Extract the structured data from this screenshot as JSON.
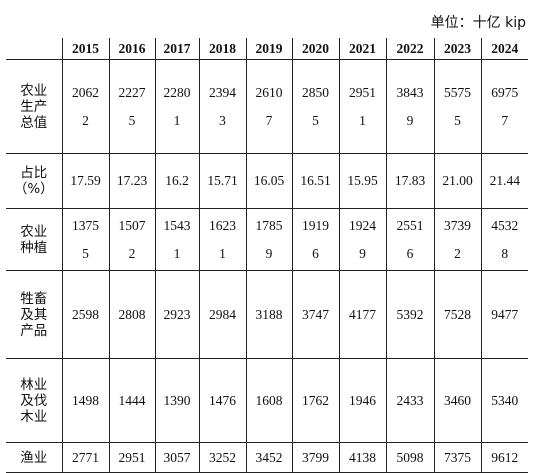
{
  "unit_label": "单位：十亿 kip",
  "years": [
    "2015",
    "2016",
    "2017",
    "2018",
    "2019",
    "2020",
    "2021",
    "2022",
    "2023",
    "2024"
  ],
  "rows": [
    {
      "label": [
        "农业",
        "生产",
        "总值"
      ],
      "values": [
        [
          "2062",
          "2"
        ],
        [
          "2227",
          "5"
        ],
        [
          "2280",
          "1"
        ],
        [
          "2394",
          "3"
        ],
        [
          "2610",
          "7"
        ],
        [
          "2850",
          "5"
        ],
        [
          "2951",
          "1"
        ],
        [
          "3843",
          "9"
        ],
        [
          "5575",
          "5"
        ],
        [
          "6975",
          "7"
        ]
      ]
    },
    {
      "label": [
        "占比",
        "（%）"
      ],
      "values": [
        "17.59",
        "17.23",
        "16.2",
        "15.71",
        "16.05",
        "16.51",
        "15.95",
        "17.83",
        "21.00",
        "21.44"
      ]
    },
    {
      "label": [
        "农业",
        "种植"
      ],
      "values": [
        [
          "1375",
          "5"
        ],
        [
          "1507",
          "2"
        ],
        [
          "1543",
          "1"
        ],
        [
          "1623",
          "1"
        ],
        [
          "1785",
          "9"
        ],
        [
          "1919",
          "6"
        ],
        [
          "1924",
          "9"
        ],
        [
          "2551",
          "6"
        ],
        [
          "3739",
          "2"
        ],
        [
          "4532",
          "8"
        ]
      ]
    },
    {
      "label": [
        "牲畜",
        "及其",
        "产品"
      ],
      "values": [
        "2598",
        "2808",
        "2923",
        "2984",
        "3188",
        "3747",
        "4177",
        "5392",
        "7528",
        "9477"
      ]
    },
    {
      "label": [
        "林业",
        "及伐",
        "木业"
      ],
      "values": [
        "1498",
        "1444",
        "1390",
        "1476",
        "1608",
        "1762",
        "1946",
        "2433",
        "3460",
        "5340"
      ]
    },
    {
      "label": [
        "渔业"
      ],
      "values": [
        "2771",
        "2951",
        "3057",
        "3252",
        "3452",
        "3799",
        "4138",
        "5098",
        "7375",
        "9612"
      ]
    }
  ]
}
